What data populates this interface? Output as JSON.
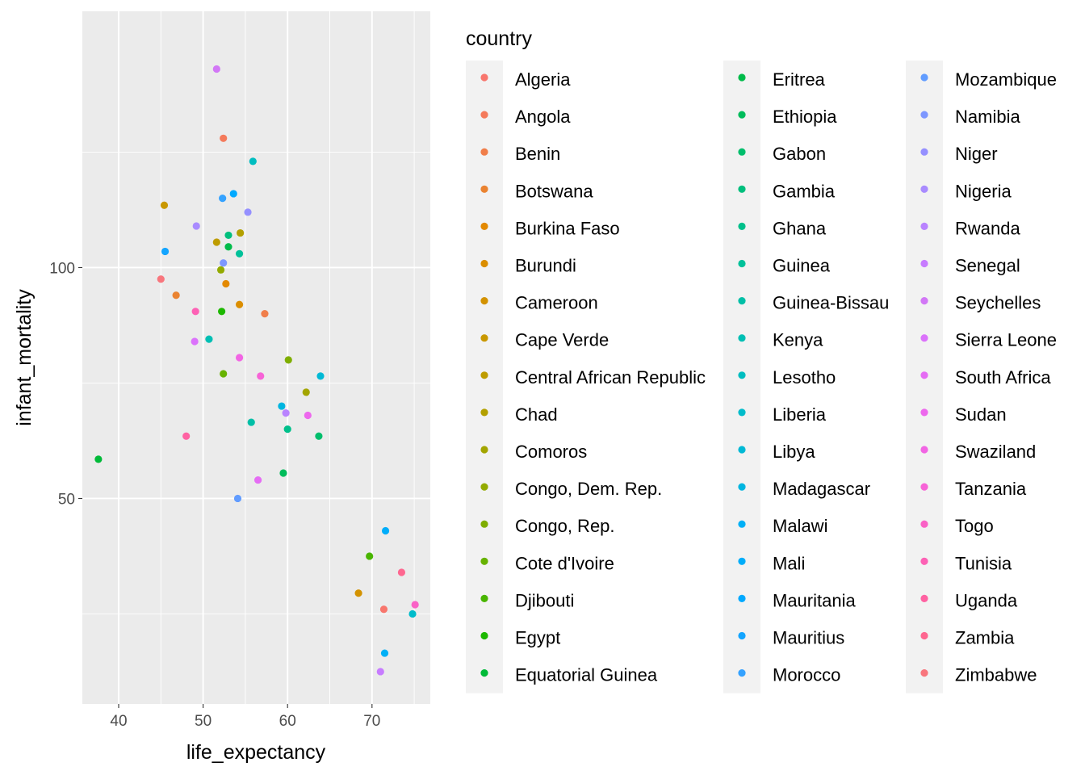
{
  "chart_data": {
    "type": "scatter",
    "title": "",
    "xlabel": "life_expectancy",
    "ylabel": "infant_mortality",
    "xlim": [
      35.7,
      76.9
    ],
    "ylim": [
      5.5,
      155.5
    ],
    "x_ticks": [
      40,
      50,
      60,
      70
    ],
    "y_ticks": [
      50,
      100
    ],
    "grid": true,
    "legend": {
      "title": "country",
      "placement": "right",
      "columns": 3
    },
    "series": [
      {
        "name": "Algeria",
        "color": "#F8766D",
        "x": 71.4,
        "y": 26
      },
      {
        "name": "Angola",
        "color": "#F47A5B",
        "x": 52.4,
        "y": 128
      },
      {
        "name": "Benin",
        "color": "#F07E4A",
        "x": 57.3,
        "y": 90
      },
      {
        "name": "Botswana",
        "color": "#EA8331",
        "x": 46.8,
        "y": 94
      },
      {
        "name": "Burkina Faso",
        "color": "#E38900",
        "x": 52.7,
        "y": 96.5
      },
      {
        "name": "Burundi",
        "color": "#DB8E00",
        "x": 54.3,
        "y": 92
      },
      {
        "name": "Cameroon",
        "color": "#D39200",
        "x": 68.4,
        "y": 29.5
      },
      {
        "name": "Cape Verde",
        "color": "#C99800",
        "x": 45.4,
        "y": 113.5
      },
      {
        "name": "Central African Republic",
        "color": "#BE9C00",
        "x": 51.6,
        "y": 105.5
      },
      {
        "name": "Chad",
        "color": "#B3A000",
        "x": 54.4,
        "y": 107.5
      },
      {
        "name": "Comoros",
        "color": "#A3A500",
        "x": 62.2,
        "y": 73
      },
      {
        "name": "Congo, Dem. Rep.",
        "color": "#93AA00",
        "x": 52.1,
        "y": 99.5
      },
      {
        "name": "Congo, Rep.",
        "color": "#7FAE00",
        "x": 60.1,
        "y": 80
      },
      {
        "name": "Cote d'Ivoire",
        "color": "#67B200",
        "x": 52.4,
        "y": 77
      },
      {
        "name": "Djibouti",
        "color": "#49B500",
        "x": 69.7,
        "y": 37.5
      },
      {
        "name": "Egypt",
        "color": "#1DB800",
        "x": 52.2,
        "y": 90.5
      },
      {
        "name": "Equatorial Guinea",
        "color": "#00BA38",
        "x": 37.6,
        "y": 58.5
      },
      {
        "name": "Eritrea",
        "color": "#00BB4A",
        "x": 53.0,
        "y": 104.5
      },
      {
        "name": "Ethiopia",
        "color": "#00BC5B",
        "x": 59.5,
        "y": 55.5
      },
      {
        "name": "Gabon",
        "color": "#00BE6C",
        "x": 63.7,
        "y": 63.5
      },
      {
        "name": "Gambia",
        "color": "#00BF7D",
        "x": 53.0,
        "y": 107
      },
      {
        "name": "Ghana",
        "color": "#00C08B",
        "x": 60.0,
        "y": 65
      },
      {
        "name": "Guinea",
        "color": "#00C19A",
        "x": 54.3,
        "y": 103
      },
      {
        "name": "Guinea-Bissau",
        "color": "#00BFA7",
        "x": 55.7,
        "y": 66.5
      },
      {
        "name": "Kenya",
        "color": "#00BFB4",
        "x": 50.7,
        "y": 84.5
      },
      {
        "name": "Lesotho",
        "color": "#00BDC0",
        "x": 55.9,
        "y": 123
      },
      {
        "name": "Liberia",
        "color": "#00BCCB",
        "x": 74.8,
        "y": 25
      },
      {
        "name": "Libya",
        "color": "#00B9D5",
        "x": 63.9,
        "y": 76.5
      },
      {
        "name": "Madagascar",
        "color": "#00B5E0",
        "x": 59.3,
        "y": 70
      },
      {
        "name": "Malawi",
        "color": "#00B0F6",
        "x": 71.5,
        "y": 16.5
      },
      {
        "name": "Mali",
        "color": "#00ADFA",
        "x": 71.6,
        "y": 43
      },
      {
        "name": "Mauritania",
        "color": "#00A9FF",
        "x": 53.6,
        "y": 116
      },
      {
        "name": "Mauritius",
        "color": "#14A5FF",
        "x": 45.5,
        "y": 103.5
      },
      {
        "name": "Morocco",
        "color": "#35A2FF",
        "x": 52.3,
        "y": 115
      },
      {
        "name": "Mozambique",
        "color": "#619CFF",
        "x": 54.1,
        "y": 50
      },
      {
        "name": "Namibia",
        "color": "#7D97FF",
        "x": 52.4,
        "y": 101
      },
      {
        "name": "Niger",
        "color": "#9590FF",
        "x": 55.3,
        "y": 112
      },
      {
        "name": "Nigeria",
        "color": "#A98BFF",
        "x": 49.2,
        "y": 109
      },
      {
        "name": "Rwanda",
        "color": "#B983FF",
        "x": 59.8,
        "y": 68.5
      },
      {
        "name": "Senegal",
        "color": "#C77CFF",
        "x": 71.0,
        "y": 12.5
      },
      {
        "name": "Seychelles",
        "color": "#D277F6",
        "x": 51.6,
        "y": 143
      },
      {
        "name": "Sierra Leone",
        "color": "#DB72FB",
        "x": 49.0,
        "y": 84
      },
      {
        "name": "South Africa",
        "color": "#E56DF4",
        "x": 56.5,
        "y": 54
      },
      {
        "name": "Sudan",
        "color": "#ED68ED",
        "x": 62.4,
        "y": 68
      },
      {
        "name": "Swaziland",
        "color": "#F265E4",
        "x": 54.3,
        "y": 80.5
      },
      {
        "name": "Tanzania",
        "color": "#F763D7",
        "x": 56.8,
        "y": 76.5
      },
      {
        "name": "Togo",
        "color": "#FA62C6",
        "x": 75.1,
        "y": 27
      },
      {
        "name": "Tunisia",
        "color": "#FD61B5",
        "x": 49.1,
        "y": 90.5
      },
      {
        "name": "Uganda",
        "color": "#FF62A2",
        "x": 48.0,
        "y": 63.5
      },
      {
        "name": "Zambia",
        "color": "#FE6790",
        "x": 73.5,
        "y": 34
      },
      {
        "name": "Zimbabwe",
        "color": "#F8767D",
        "x": 45.0,
        "y": 97.5
      }
    ]
  }
}
